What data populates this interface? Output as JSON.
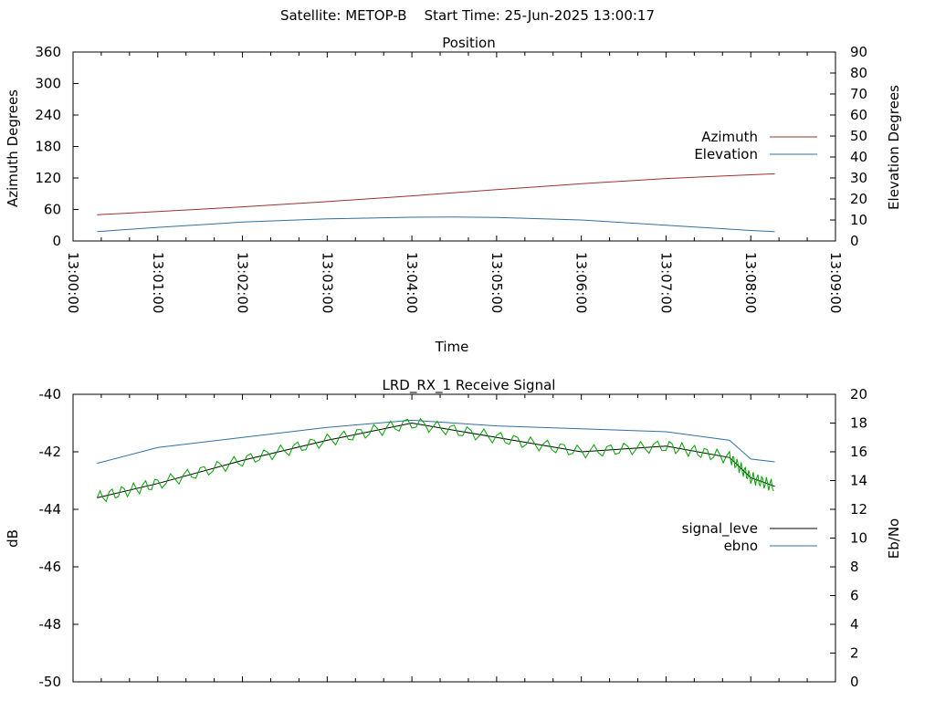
{
  "page": {
    "title": "Satellite: METOP-B    Start Time: 25-Jun-2025 13:00:17"
  },
  "chart_data": [
    {
      "type": "line",
      "title": "Position",
      "xlabel": "Time",
      "ylabel": "Azimuth Degrees",
      "y2label": "Elevation Degrees",
      "x_ticks": [
        "13:00:00",
        "13:01:00",
        "13:02:00",
        "13:03:00",
        "13:04:00",
        "13:05:00",
        "13:06:00",
        "13:07:00",
        "13:08:00",
        "13:09:00"
      ],
      "ylim": [
        0,
        360
      ],
      "y_ticks": [
        0,
        60,
        120,
        180,
        240,
        300,
        360
      ],
      "y2lim": [
        0,
        90
      ],
      "y2_ticks": [
        0,
        10,
        20,
        30,
        40,
        50,
        60,
        70,
        80,
        90
      ],
      "xlim_seconds": [
        0,
        540
      ],
      "legend_position": "right",
      "colors": {
        "azimuth": "#a03030",
        "elevation": "#3070a0"
      },
      "series": [
        {
          "name": "Azimuth",
          "axis": "y",
          "x_time": [
            "13:00:17",
            "13:01:00",
            "13:02:00",
            "13:03:00",
            "13:04:00",
            "13:05:00",
            "13:06:00",
            "13:07:00",
            "13:08:17"
          ],
          "values": [
            50,
            56,
            65,
            75,
            86,
            98,
            109,
            119,
            128
          ]
        },
        {
          "name": "Elevation",
          "axis": "y2",
          "x_time": [
            "13:00:17",
            "13:01:00",
            "13:02:00",
            "13:03:00",
            "13:04:00",
            "13:04:30",
            "13:05:00",
            "13:06:00",
            "13:07:00",
            "13:08:00",
            "13:08:17"
          ],
          "values": [
            4.5,
            6.5,
            9,
            10.5,
            11.3,
            11.4,
            11.2,
            10,
            7.5,
            5,
            4.5
          ]
        }
      ]
    },
    {
      "type": "line",
      "title": "LRD_RX_1 Receive Signal",
      "xlabel": "",
      "ylabel": "dB",
      "y2label": "Eb/No",
      "ylim": [
        -50,
        -40
      ],
      "y_ticks": [
        -50,
        -48,
        -46,
        -44,
        -42,
        -40
      ],
      "y2lim": [
        0,
        20
      ],
      "y2_ticks": [
        0,
        2,
        4,
        6,
        8,
        10,
        12,
        14,
        16,
        18,
        20
      ],
      "xlim_seconds": [
        0,
        540
      ],
      "legend_position": "right",
      "colors": {
        "signal_level": "#000000",
        "ebno": "#3070a0",
        "trace_green": "#00a000"
      },
      "series": [
        {
          "name": "signal_leve",
          "axis": "y",
          "x_time": [
            "13:00:17",
            "13:01:00",
            "13:02:00",
            "13:03:00",
            "13:04:00",
            "13:05:00",
            "13:06:00",
            "13:07:00",
            "13:07:45",
            "13:08:00",
            "13:08:17"
          ],
          "values": [
            -43.6,
            -43.1,
            -42.3,
            -41.6,
            -41.0,
            -41.5,
            -42.0,
            -41.8,
            -42.2,
            -42.9,
            -43.2
          ]
        },
        {
          "name": "ebno",
          "axis": "y2",
          "x_time": [
            "13:00:17",
            "13:01:00",
            "13:02:00",
            "13:03:00",
            "13:04:00",
            "13:05:00",
            "13:06:00",
            "13:07:00",
            "13:07:45",
            "13:08:00",
            "13:08:17"
          ],
          "values": [
            15.2,
            16.3,
            17.0,
            17.7,
            18.2,
            17.8,
            17.6,
            17.4,
            16.8,
            15.5,
            15.3
          ]
        }
      ]
    }
  ]
}
